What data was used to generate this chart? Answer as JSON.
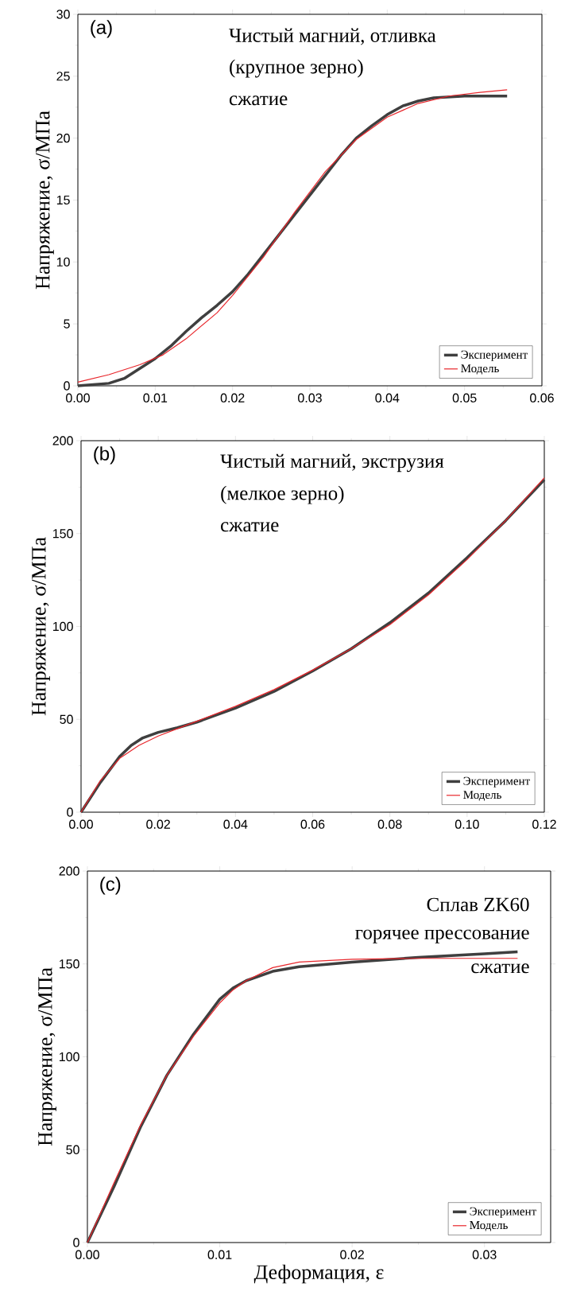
{
  "chart_data": [
    {
      "type": "line",
      "ylabel": "Напряжение, σ/МПа",
      "annotations": [
        "(a)",
        "Чистый магний, отливка",
        "(крупное зерно)",
        "сжатие"
      ],
      "xlim": [
        0,
        0.06
      ],
      "ylim": [
        0,
        30
      ],
      "xticks": [
        {
          "value": 0,
          "label": "0.00"
        },
        {
          "value": 0.01,
          "label": "0.01"
        },
        {
          "value": 0.02,
          "label": "0.02"
        },
        {
          "value": 0.03,
          "label": "0.03"
        },
        {
          "value": 0.04,
          "label": "0.04"
        },
        {
          "value": 0.05,
          "label": "0.05"
        },
        {
          "value": 0.06,
          "label": "0.06"
        }
      ],
      "yticks": [
        0,
        5,
        10,
        15,
        20,
        25,
        30
      ],
      "legend": "bottom right",
      "series": [
        {
          "name": "Эксперимент",
          "color": "#3f3f3f",
          "x": [
            0,
            0.004,
            0.006,
            0.008,
            0.01,
            0.012,
            0.014,
            0.016,
            0.018,
            0.02,
            0.022,
            0.024,
            0.026,
            0.028,
            0.03,
            0.032,
            0.034,
            0.036,
            0.038,
            0.04,
            0.042,
            0.044,
            0.046,
            0.05,
            0.0555
          ],
          "values": [
            0,
            0.2,
            0.6,
            1.4,
            2.2,
            3.2,
            4.4,
            5.5,
            6.5,
            7.6,
            9,
            10.6,
            12.2,
            13.8,
            15.4,
            17,
            18.6,
            20,
            21,
            21.9,
            22.6,
            23,
            23.25,
            23.4,
            23.4
          ]
        },
        {
          "name": "Модель",
          "color": "#e8262b",
          "x": [
            0,
            0.004,
            0.008,
            0.011,
            0.014,
            0.018,
            0.02,
            0.024,
            0.028,
            0.032,
            0.036,
            0.04,
            0.044,
            0.048,
            0.052,
            0.0555
          ],
          "values": [
            0.3,
            0.9,
            1.7,
            2.5,
            3.8,
            5.9,
            7.3,
            10.4,
            14,
            17.3,
            19.9,
            21.7,
            22.8,
            23.4,
            23.7,
            23.9
          ]
        }
      ]
    },
    {
      "type": "line",
      "ylabel": "Напряжение, σ/МПа",
      "annotations": [
        "(b)",
        "Чистый магний, экструзия",
        "(мелкое зерно)",
        "сжатие"
      ],
      "xlim": [
        0,
        0.12
      ],
      "ylim": [
        0,
        200
      ],
      "xticks": [
        {
          "value": 0,
          "label": "0.00"
        },
        {
          "value": 0.02,
          "label": "0.02"
        },
        {
          "value": 0.04,
          "label": "0.04"
        },
        {
          "value": 0.06,
          "label": "0.06"
        },
        {
          "value": 0.08,
          "label": "0.08"
        },
        {
          "value": 0.1,
          "label": "0.10"
        },
        {
          "value": 0.12,
          "label": "0.12"
        }
      ],
      "yticks": [
        0,
        50,
        100,
        150,
        200
      ],
      "legend": "bottom right",
      "series": [
        {
          "name": "Эксперимент",
          "color": "#3f3f3f",
          "x": [
            0,
            0.005,
            0.01,
            0.013,
            0.016,
            0.02,
            0.025,
            0.03,
            0.04,
            0.05,
            0.06,
            0.07,
            0.08,
            0.09,
            0.1,
            0.11,
            0.12
          ],
          "values": [
            0,
            16,
            30,
            36,
            40,
            43,
            45.5,
            48.5,
            56,
            65,
            76,
            88,
            102,
            118,
            137,
            157,
            179
          ]
        },
        {
          "name": "Модель",
          "color": "#e8262b",
          "x": [
            0,
            0.005,
            0.01,
            0.015,
            0.02,
            0.025,
            0.03,
            0.04,
            0.05,
            0.06,
            0.07,
            0.08,
            0.09,
            0.1,
            0.11,
            0.12
          ],
          "values": [
            0,
            17,
            29,
            36,
            41,
            45,
            49,
            57,
            66,
            76.5,
            88,
            101,
            117,
            136,
            157,
            180
          ]
        }
      ]
    },
    {
      "type": "line",
      "ylabel": "Напряжение, σ/МПа",
      "xlabel": "Деформация, ε",
      "annotations": [
        "(c)",
        "Сплав ZK60",
        "горячее прессование",
        "сжатие"
      ],
      "xlim": [
        0,
        0.035
      ],
      "ylim": [
        0,
        200
      ],
      "xticks": [
        {
          "value": 0,
          "label": "0.00"
        },
        {
          "value": 0.01,
          "label": "0.01"
        },
        {
          "value": 0.02,
          "label": "0.02"
        },
        {
          "value": 0.03,
          "label": "0.03"
        }
      ],
      "yticks": [
        0,
        50,
        100,
        150,
        200
      ],
      "legend": "bottom right",
      "series": [
        {
          "name": "Эксперимент",
          "color": "#3f3f3f",
          "x": [
            0,
            0.002,
            0.004,
            0.006,
            0.008,
            0.01,
            0.011,
            0.012,
            0.014,
            0.016,
            0.02,
            0.025,
            0.03,
            0.0325
          ],
          "values": [
            0,
            30,
            62,
            90,
            112,
            131,
            137,
            141,
            146,
            148.5,
            151,
            153.5,
            155.5,
            156.5
          ]
        },
        {
          "name": "Модель",
          "color": "#e8262b",
          "x": [
            0,
            0.002,
            0.004,
            0.006,
            0.008,
            0.01,
            0.011,
            0.012,
            0.014,
            0.016,
            0.02,
            0.025,
            0.0325
          ],
          "values": [
            0,
            32,
            63,
            90,
            111,
            129,
            136,
            141,
            148,
            151,
            152.5,
            153,
            153
          ]
        }
      ]
    }
  ]
}
